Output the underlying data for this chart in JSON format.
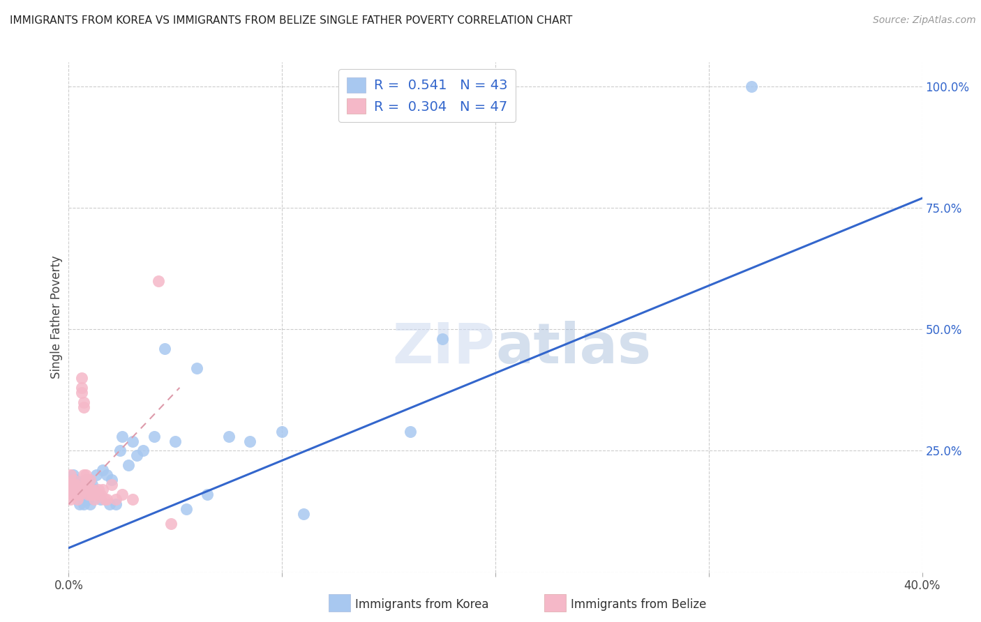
{
  "title": "IMMIGRANTS FROM KOREA VS IMMIGRANTS FROM BELIZE SINGLE FATHER POVERTY CORRELATION CHART",
  "source": "Source: ZipAtlas.com",
  "ylabel": "Single Father Poverty",
  "xlim": [
    0.0,
    0.4
  ],
  "ylim": [
    0.0,
    1.05
  ],
  "x_ticks": [
    0.0,
    0.1,
    0.2,
    0.3,
    0.4
  ],
  "x_tick_labels": [
    "0.0%",
    "",
    "",
    "",
    "40.0%"
  ],
  "y_ticks": [
    0.25,
    0.5,
    0.75,
    1.0
  ],
  "y_tick_labels": [
    "25.0%",
    "50.0%",
    "75.0%",
    "100.0%"
  ],
  "korea_R": 0.541,
  "korea_N": 43,
  "belize_R": 0.304,
  "belize_N": 47,
  "korea_color": "#a8c8f0",
  "belize_color": "#f5b8c8",
  "korea_line_color": "#3366cc",
  "belize_line_color": "#dd9aaa",
  "watermark_zip": "ZIP",
  "watermark_atlas": "atlas",
  "legend_label_korea": "Immigrants from Korea",
  "legend_label_belize": "Immigrants from Belize",
  "korea_trend_x": [
    0.0,
    0.4
  ],
  "korea_trend_y": [
    0.05,
    0.77
  ],
  "belize_trend_x": [
    0.0,
    0.052
  ],
  "belize_trend_y": [
    0.14,
    0.38
  ],
  "korea_x": [
    0.001,
    0.002,
    0.003,
    0.004,
    0.005,
    0.005,
    0.006,
    0.007,
    0.007,
    0.008,
    0.008,
    0.009,
    0.01,
    0.01,
    0.011,
    0.012,
    0.013,
    0.014,
    0.015,
    0.016,
    0.018,
    0.019,
    0.02,
    0.022,
    0.024,
    0.025,
    0.028,
    0.03,
    0.032,
    0.035,
    0.04,
    0.045,
    0.05,
    0.055,
    0.06,
    0.065,
    0.075,
    0.085,
    0.1,
    0.11,
    0.16,
    0.175,
    0.32
  ],
  "korea_y": [
    0.17,
    0.2,
    0.19,
    0.16,
    0.17,
    0.14,
    0.18,
    0.15,
    0.14,
    0.19,
    0.17,
    0.15,
    0.17,
    0.14,
    0.18,
    0.17,
    0.2,
    0.16,
    0.15,
    0.21,
    0.2,
    0.14,
    0.19,
    0.14,
    0.25,
    0.28,
    0.22,
    0.27,
    0.24,
    0.25,
    0.28,
    0.46,
    0.27,
    0.13,
    0.42,
    0.16,
    0.28,
    0.27,
    0.29,
    0.12,
    0.29,
    0.48,
    1.0
  ],
  "belize_x": [
    0.001,
    0.001,
    0.001,
    0.001,
    0.001,
    0.002,
    0.002,
    0.002,
    0.002,
    0.003,
    0.003,
    0.003,
    0.004,
    0.004,
    0.004,
    0.005,
    0.005,
    0.005,
    0.006,
    0.006,
    0.006,
    0.007,
    0.007,
    0.007,
    0.008,
    0.008,
    0.008,
    0.009,
    0.009,
    0.01,
    0.01,
    0.01,
    0.011,
    0.011,
    0.012,
    0.013,
    0.014,
    0.015,
    0.016,
    0.017,
    0.018,
    0.02,
    0.022,
    0.025,
    0.03,
    0.042,
    0.048
  ],
  "belize_y": [
    0.15,
    0.16,
    0.17,
    0.18,
    0.2,
    0.16,
    0.17,
    0.18,
    0.19,
    0.16,
    0.17,
    0.18,
    0.15,
    0.16,
    0.17,
    0.16,
    0.17,
    0.18,
    0.37,
    0.38,
    0.4,
    0.34,
    0.35,
    0.2,
    0.18,
    0.19,
    0.2,
    0.17,
    0.16,
    0.16,
    0.17,
    0.19,
    0.17,
    0.16,
    0.15,
    0.16,
    0.17,
    0.16,
    0.17,
    0.15,
    0.15,
    0.18,
    0.15,
    0.16,
    0.15,
    0.6,
    0.1
  ]
}
